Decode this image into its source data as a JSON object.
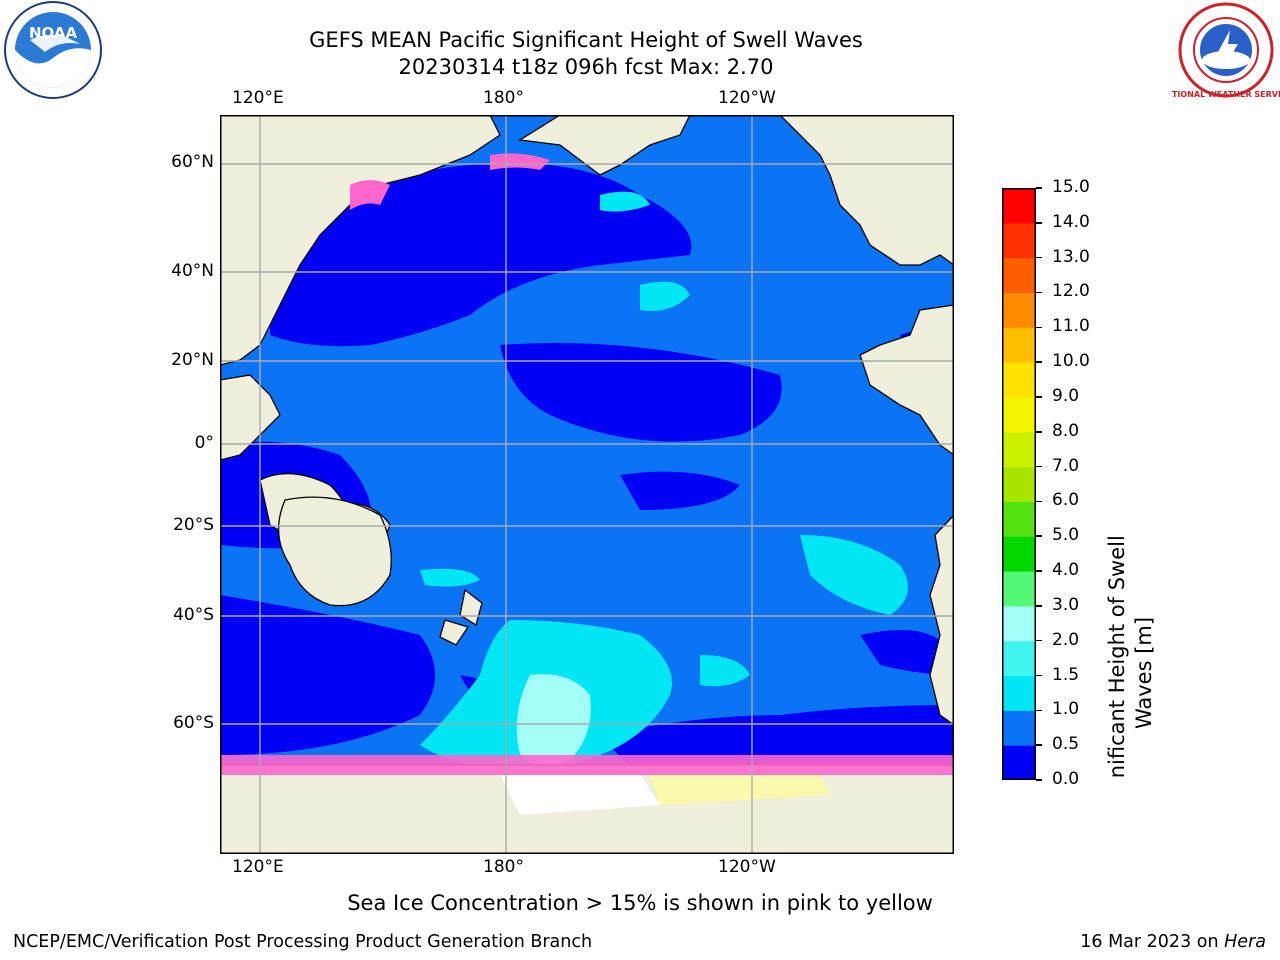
{
  "header": {
    "title_line1": "GEFS MEAN Pacific Significant Height of Swell Waves",
    "title_line2": "20230314 t18z 096h fcst   Max: 2.70"
  },
  "logos": {
    "left_icon": "noaa-logo-icon",
    "left_text": "NOAA",
    "right_icon": "nws-logo-icon",
    "right_text": "NATIONAL WEATHER SERVICE"
  },
  "map": {
    "lon_labels": [
      "120°E",
      "180°",
      "120°W"
    ],
    "lat_labels": [
      "60°N",
      "40°N",
      "20°N",
      "0°",
      "20°S",
      "40°S",
      "60°S"
    ]
  },
  "colorbar": {
    "label_line1": "Significant Height of Swell",
    "label_line2": "Waves [m]",
    "ticks": [
      "0.0",
      "0.5",
      "1.0",
      "1.5",
      "2.0",
      "3.0",
      "4.0",
      "5.0",
      "6.0",
      "7.0",
      "8.0",
      "9.0",
      "10.0",
      "11.0",
      "12.0",
      "13.0",
      "14.0",
      "15.0"
    ],
    "colors": [
      "#0000f5",
      "#0a74f5",
      "#00e6f5",
      "#40f5f0",
      "#a3fff7",
      "#55f777",
      "#00d800",
      "#55e010",
      "#a8e600",
      "#ccf000",
      "#f5f500",
      "#ffe200",
      "#ffbe00",
      "#ff8c00",
      "#ff5e00",
      "#ff3000",
      "#ff0000"
    ]
  },
  "palette": {
    "land": "#efefdc",
    "deep": "#0000f5",
    "medium": "#0a74f5",
    "light": "#00e6f5",
    "pale": "#a3fff7",
    "ice": "#ff66cc"
  },
  "footer": {
    "note": "Sea Ice Concentration > 15% is shown in pink to yellow",
    "credit": "NCEP/EMC/Verification Post Processing Product Generation Branch",
    "date": "16 Mar 2023 on",
    "machine": "Hera"
  }
}
